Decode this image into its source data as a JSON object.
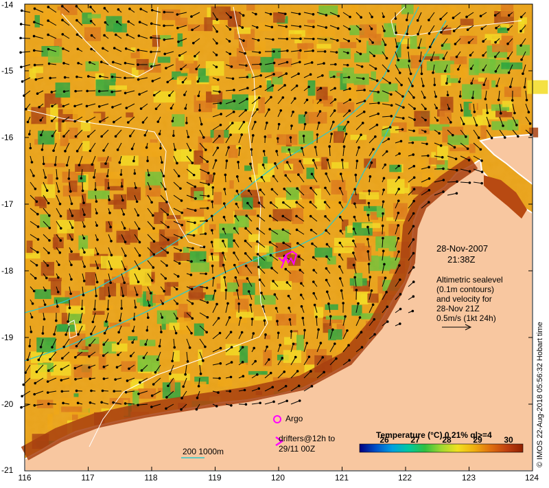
{
  "map": {
    "lon_labels": [
      "116",
      "117",
      "118",
      "119",
      "120",
      "121",
      "122",
      "123",
      "124"
    ],
    "lat_labels": [
      "-14",
      "-15",
      "-16",
      "-17",
      "-18",
      "-19",
      "-20",
      "-21"
    ],
    "colors": {
      "land": "#f8c7a0",
      "warm": "#d9751a",
      "hot": "#a8400f",
      "mid": "#eda514",
      "yellow": "#f2dc22",
      "green": "#67c23a",
      "cool": "#1fa33f",
      "cyan": "#2cc9c9",
      "magenta": "#ff00ff"
    }
  },
  "annotations": {
    "date": "28-Nov-2007",
    "time": "21:38Z",
    "note_line1": "Altimetric sealevel",
    "note_line2": "(0.1m contours)",
    "note_line3": "and velocity for",
    "note_line4": "28-Nov 21Z",
    "note_line5": "0.5m/s (1kt 24h)",
    "argo": "Argo",
    "drifters_line1": "drifters@12h to",
    "drifters_line2": "29/11 00Z",
    "bathy": "200  1000m",
    "credit": "© IMOS 22-Aug-2018 05:56:32 Hobart time"
  },
  "colorbar": {
    "title": "Temperature (°C) 0 21% ql>=4",
    "ticks": [
      "26",
      "27",
      "28",
      "29",
      "30"
    ],
    "stops": [
      "#000080",
      "#0050c8",
      "#00a0e0",
      "#00c8a0",
      "#30c040",
      "#a0d830",
      "#f0e020",
      "#f0b010",
      "#e07010",
      "#c04010",
      "#902000"
    ]
  }
}
